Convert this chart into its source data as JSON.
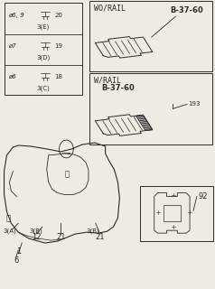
{
  "bg_color": "#eeebe4",
  "line_color": "#2a2a2a",
  "bolt_table": {
    "rows": [
      {
        "dia": "ø6",
        "num": "18",
        "label": "3(C)"
      },
      {
        "dia": "ø7",
        "num": "19",
        "label": "3(D)"
      },
      {
        "dia": "ø6, 9",
        "num": "20",
        "label": "3(E)"
      }
    ]
  },
  "wo_rail_label": "WO/RAIL",
  "w_rail_label": "W/RAIL",
  "part_b3760": "B-37-60",
  "part_193": "193",
  "font_size_small": 5,
  "font_size_med": 6
}
